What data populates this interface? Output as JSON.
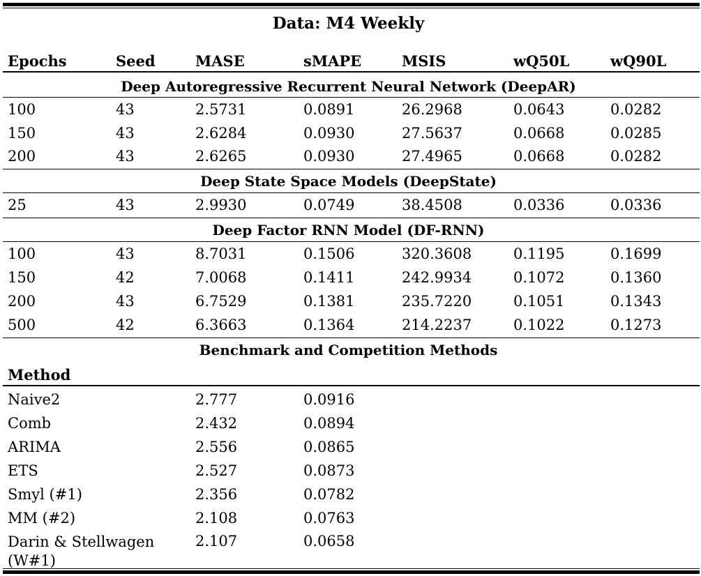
{
  "title": "Data: M4 Weekly",
  "columns": [
    "Epochs",
    "Seed",
    "MASE",
    "sMAPE",
    "MSIS",
    "wQ50L",
    "wQ90L"
  ],
  "sections": [
    {
      "name": "Deep Autoregressive Recurrent Neural Network (DeepAR)",
      "rows": [
        [
          "100",
          "43",
          "2.5731",
          "0.0891",
          "26.2968",
          "0.0643",
          "0.0282"
        ],
        [
          "150",
          "43",
          "2.6284",
          "0.0930",
          "27.5637",
          "0.0668",
          "0.0285"
        ],
        [
          "200",
          "43",
          "2.6265",
          "0.0930",
          "27.4965",
          "0.0668",
          "0.0282"
        ]
      ]
    },
    {
      "name": "Deep State Space Models (DeepState)",
      "rows": [
        [
          "25",
          "43",
          "2.9930",
          "0.0749",
          "38.4508",
          "0.0336",
          "0.0336"
        ]
      ]
    },
    {
      "name": "Deep Factor RNN Model (DF-RNN)",
      "rows": [
        [
          "100",
          "43",
          "8.7031",
          "0.1506",
          "320.3608",
          "0.1195",
          "0.1699"
        ],
        [
          "150",
          "42",
          "7.0068",
          "0.1411",
          "242.9934",
          "0.1072",
          "0.1360"
        ],
        [
          "200",
          "43",
          "6.7529",
          "0.1381",
          "235.7220",
          "0.1051",
          "0.1343"
        ],
        [
          "500",
          "42",
          "6.3663",
          "0.1364",
          "214.2237",
          "0.1022",
          "0.1273"
        ]
      ]
    }
  ],
  "benchmark": {
    "name": "Benchmark and Competition Methods",
    "method_header": "Method",
    "rows": [
      [
        "Naive2",
        "2.777",
        "0.0916"
      ],
      [
        "Comb",
        "2.432",
        "0.0894"
      ],
      [
        "ARIMA",
        "2.556",
        "0.0865"
      ],
      [
        "ETS",
        "2.527",
        "0.0873"
      ],
      [
        "Smyl (#1)",
        "2.356",
        "0.0782"
      ],
      [
        "MM (#2)",
        "2.108",
        "0.0763"
      ],
      [
        "Darin & Stellwagen (W#1)",
        "2.107",
        "0.0658"
      ]
    ]
  }
}
